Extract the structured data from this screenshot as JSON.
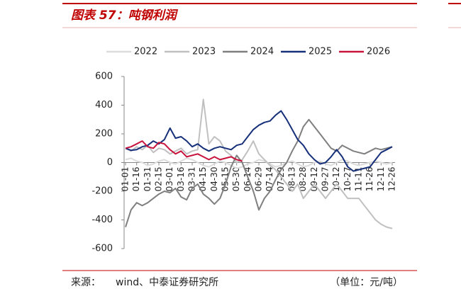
{
  "header": {
    "title": "图表 57：吨钢利润"
  },
  "chart_data": {
    "type": "line",
    "categories": [
      "01-01",
      null,
      "01-16",
      null,
      "01-31",
      null,
      "02-15",
      null,
      "03-01",
      null,
      "03-16",
      null,
      "03-31",
      null,
      "04-15",
      null,
      "04-30",
      null,
      "05-15",
      null,
      "05-30",
      null,
      "06-14",
      null,
      "06-29",
      null,
      "07-14",
      null,
      "07-29",
      null,
      "08-13",
      null,
      "08-28",
      null,
      "09-12",
      null,
      "09-27",
      null,
      "10-12",
      null,
      "10-27",
      null,
      "11-11",
      null,
      "11-26",
      null,
      "12-11",
      null,
      "12-26"
    ],
    "series": [
      {
        "name": "2022",
        "color": "#dcdcdc",
        "values": [
          20,
          30,
          10,
          0,
          -20,
          -10,
          10,
          20,
          0,
          -10,
          10,
          30,
          20,
          0,
          -20,
          -30,
          -10,
          10,
          0,
          -20,
          -40,
          -30,
          -10,
          0,
          20,
          10,
          -10,
          -30,
          -20,
          0,
          10,
          -10,
          -30,
          -20,
          0,
          10,
          -10,
          -20,
          0,
          20,
          10,
          -10,
          -20,
          -10,
          0,
          10,
          0,
          -10,
          0
        ]
      },
      {
        "name": "2023",
        "color": "#c0c0c0",
        "values": [
          100,
          80,
          110,
          90,
          120,
          70,
          100,
          90,
          60,
          80,
          100,
          60,
          80,
          90,
          440,
          130,
          180,
          150,
          80,
          50,
          0,
          20,
          80,
          150,
          60,
          20,
          -20,
          -50,
          -100,
          -150,
          -200,
          -150,
          -250,
          -200,
          -150,
          -200,
          -250,
          -200,
          -150,
          -200,
          -250,
          -250,
          -250,
          -300,
          -350,
          -400,
          -430,
          -450,
          -460
        ]
      },
      {
        "name": "2024",
        "color": "#7f7f7f",
        "values": [
          -450,
          -330,
          -280,
          -300,
          -280,
          -250,
          -220,
          -200,
          -210,
          -180,
          -240,
          -260,
          -180,
          -150,
          -220,
          -250,
          -290,
          -250,
          -150,
          -30,
          50,
          0,
          -100,
          -200,
          -330,
          -250,
          -200,
          -120,
          -50,
          0,
          80,
          150,
          250,
          300,
          250,
          200,
          150,
          100,
          80,
          120,
          100,
          80,
          70,
          60,
          80,
          100,
          90,
          100,
          110
        ]
      },
      {
        "name": "2025",
        "color": "#17307a",
        "values": [
          100,
          85,
          90,
          110,
          120,
          150,
          130,
          160,
          240,
          170,
          180,
          150,
          110,
          130,
          100,
          80,
          100,
          110,
          100,
          90,
          120,
          130,
          180,
          230,
          260,
          280,
          290,
          330,
          360,
          300,
          230,
          160,
          120,
          60,
          20,
          -10,
          0,
          40,
          90,
          40,
          -30,
          -60,
          -50,
          -40,
          -30,
          20,
          70,
          90,
          110
        ]
      },
      {
        "name": "2026",
        "color": "#c8143c",
        "values": [
          100,
          110,
          130,
          150,
          110,
          100,
          140,
          130,
          90,
          60,
          80,
          40,
          50,
          60,
          40,
          20,
          40,
          20,
          30,
          40,
          20,
          10,
          null,
          null,
          null,
          null,
          null,
          null,
          null,
          null,
          null,
          null,
          null,
          null,
          null,
          null,
          null,
          null,
          null,
          null,
          null,
          null,
          null,
          null,
          null,
          null,
          null,
          null,
          null
        ]
      }
    ],
    "ylim": [
      -600,
      600
    ],
    "yticks": [
      -600,
      -400,
      -200,
      0,
      200,
      400,
      600
    ]
  },
  "footer": {
    "source_label": "来源：",
    "source": "wind、中泰证券研究所",
    "unit": "（单位：元/吨）"
  }
}
